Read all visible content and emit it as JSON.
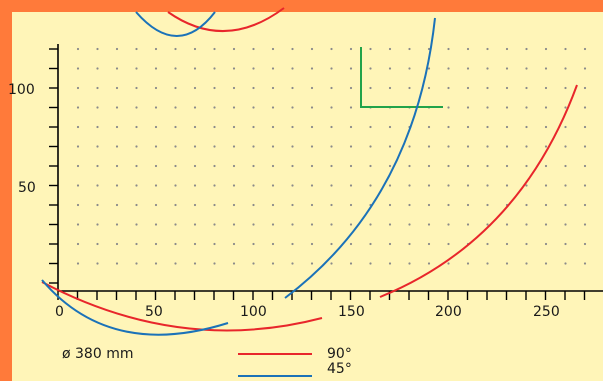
{
  "colors": {
    "background_outer": "#ff7a3a",
    "panel": "#fff5b8",
    "grid_dots": "#8a8a8a",
    "series_90": "#e8262b",
    "series_45": "#1b72b8",
    "marker": "#22a34a"
  },
  "caption": "ø 380 mm",
  "legend": [
    {
      "label": "90°",
      "color": "#e8262b"
    },
    {
      "label": "45°",
      "color": "#1b72b8"
    }
  ],
  "axes": {
    "x_ticks": [
      "0",
      "50",
      "100",
      "150",
      "200",
      "250"
    ],
    "y_ticks": [
      "100",
      "50"
    ]
  }
}
